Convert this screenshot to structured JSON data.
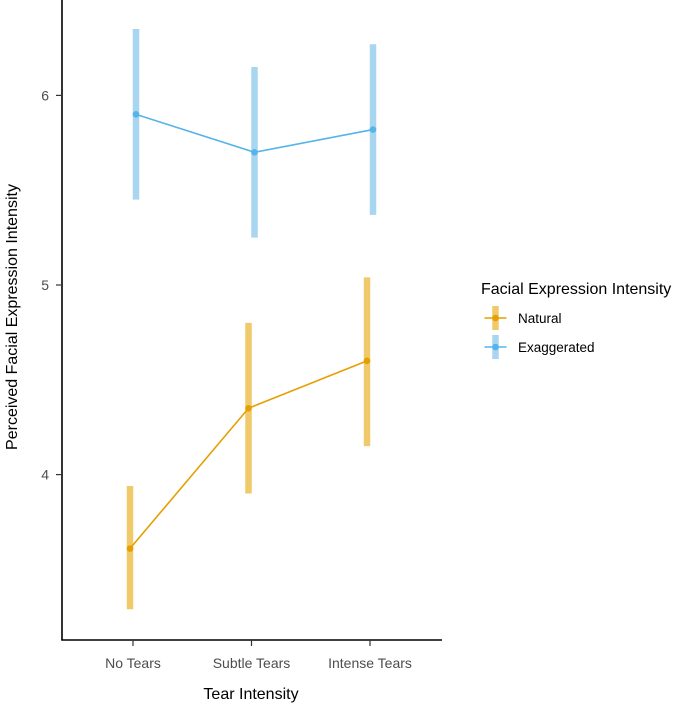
{
  "chart_data": {
    "type": "line",
    "title": "",
    "xlabel": "Tear Intensity",
    "ylabel": "Perceived Facial Expression Intensity",
    "categories": [
      "No Tears",
      "Subtle Tears",
      "Intense Tears"
    ],
    "y_ticks": [
      4,
      5,
      6
    ],
    "y_tick_labels": [
      "4",
      "5",
      "6"
    ],
    "ylim": [
      3.22,
      6.5
    ],
    "grid": false,
    "legend": {
      "title": "Facial Expression Intensity",
      "placement": "right",
      "entries": [
        "Natural",
        "Exaggerated"
      ]
    },
    "series": [
      {
        "name": "Natural",
        "color": "#E69F00",
        "error_color": "#F0C96A",
        "values": [
          3.61,
          4.35,
          4.6
        ],
        "lower": [
          3.29,
          3.9,
          4.15
        ],
        "upper": [
          3.94,
          4.8,
          5.04
        ]
      },
      {
        "name": "Exaggerated",
        "color": "#56B4E9",
        "error_color": "#A8D6F1",
        "values": [
          5.9,
          5.7,
          5.82
        ],
        "lower": [
          5.45,
          5.25,
          5.37
        ],
        "upper": [
          6.35,
          6.15,
          6.27
        ]
      }
    ]
  }
}
